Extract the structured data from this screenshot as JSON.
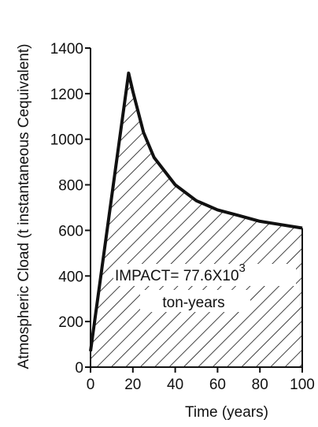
{
  "chart_data": {
    "type": "area",
    "title": "",
    "xlabel": "Time (years)",
    "ylabel": "Atmospheric Cload (t instantaneous Cequivalent)",
    "xlim": [
      0,
      100
    ],
    "ylim": [
      0,
      1400
    ],
    "xticks": [
      "0",
      "20",
      "40",
      "60",
      "80",
      "100"
    ],
    "yticks": [
      "0",
      "200",
      "400",
      "600",
      "800",
      "1000",
      "1200",
      "1400"
    ],
    "grid": false,
    "fill": "hatched",
    "series": [
      {
        "x": [
          0,
          18,
          20,
          25,
          30,
          40,
          50,
          60,
          70,
          80,
          90,
          100
        ],
        "y": [
          70,
          1290,
          1210,
          1030,
          920,
          800,
          730,
          690,
          665,
          640,
          625,
          610
        ]
      }
    ],
    "annotation": {
      "line1": "IMPACT= 77.6X10",
      "superscript": "3",
      "line2": "ton-years"
    }
  }
}
